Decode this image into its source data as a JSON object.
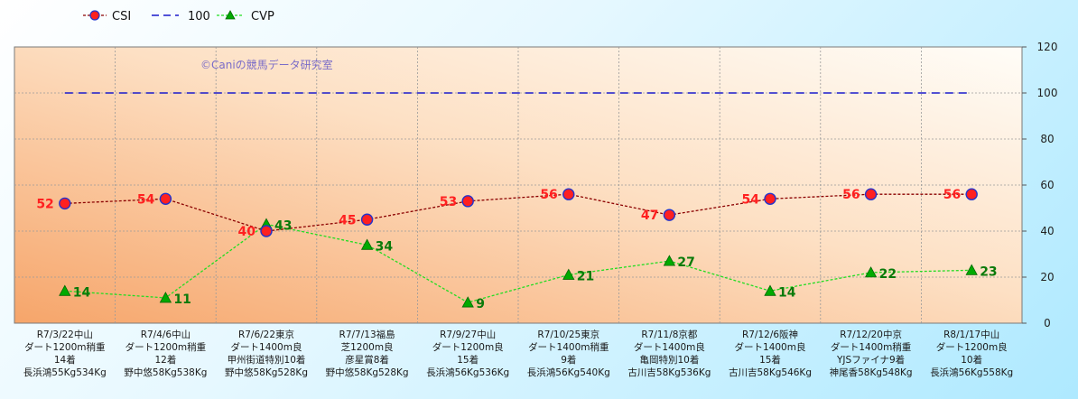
{
  "chart_data": {
    "type": "line",
    "categories": [
      [
        "R7/3/22中山",
        "ダート1200m稍重",
        "14着",
        "長浜鴻55Kg534Kg"
      ],
      [
        "R7/4/6中山",
        "ダート1200m稍重",
        "12着",
        "野中悠58Kg538Kg"
      ],
      [
        "R7/6/22東京",
        "ダート1400m良",
        "甲州街道特別10着",
        "野中悠58Kg528Kg"
      ],
      [
        "R7/7/13福島",
        "芝1200m良",
        "彦星賞8着",
        "野中悠58Kg528Kg"
      ],
      [
        "R7/9/27中山",
        "ダート1200m良",
        "15着",
        "長浜鴻56Kg536Kg"
      ],
      [
        "R7/10/25東京",
        "ダート1400m稍重",
        "9着",
        "長浜鴻56Kg540Kg"
      ],
      [
        "R7/11/8京都",
        "ダート1400m良",
        "亀岡特別10着",
        "古川吉58Kg536Kg"
      ],
      [
        "R7/12/6阪神",
        "ダート1400m良",
        "15着",
        "古川吉58Kg546Kg"
      ],
      [
        "R7/12/20中京",
        "ダート1400m稍重",
        "YJSファイナ9着",
        "神尾香58Kg548Kg"
      ],
      [
        "R8/1/17中山",
        "ダート1200m良",
        "10着",
        "長浜鴻56Kg558Kg"
      ]
    ],
    "series": [
      {
        "name": "CSI",
        "values": [
          52,
          54,
          40,
          45,
          53,
          56,
          47,
          54,
          56,
          56
        ],
        "color": "#8b0000",
        "marker": "circle",
        "marker_fill": "#ff2020",
        "marker_stroke": "#2233cc",
        "label_color": "#ff2020"
      },
      {
        "name": "100",
        "values": [
          100,
          100,
          100,
          100,
          100,
          100,
          100,
          100,
          100,
          100
        ],
        "color": "#1a1acc",
        "style": "dashed"
      },
      {
        "name": "CVP",
        "values": [
          14,
          11,
          43,
          34,
          9,
          21,
          27,
          14,
          22,
          23
        ],
        "color": "#22dd22",
        "marker": "triangle",
        "marker_fill": "#00aa00",
        "label_color": "#0a7a0a"
      }
    ],
    "yticks": [
      0,
      20,
      40,
      60,
      80,
      100,
      120
    ],
    "ylim": [
      0,
      120
    ],
    "y_axis_side": "right",
    "grid": true,
    "legend_position": "top-left",
    "watermark": "©Caniの競馬データ研究室"
  }
}
